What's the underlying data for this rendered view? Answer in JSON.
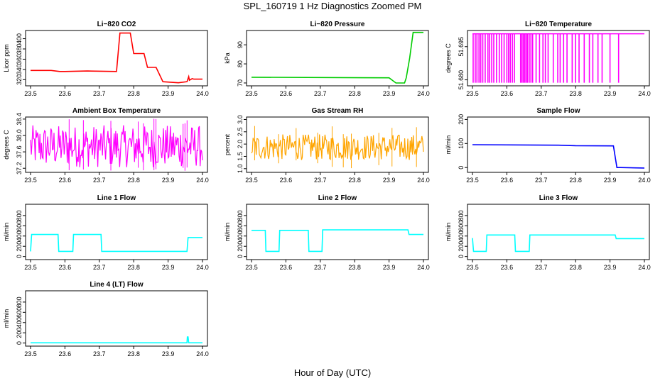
{
  "title": "SPL_160719  1 Hz Diagnostics Zoomed PM",
  "xlabel": "Hour of Day (UTC)",
  "chart_data": [
    {
      "type": "line",
      "title": "Li−820 CO2",
      "ylabel": "Licor ppm",
      "color": "#ff0000",
      "xlim": [
        23.5,
        24.0
      ],
      "xticks": [
        23.5,
        23.6,
        23.7,
        23.8,
        23.9,
        24.0
      ],
      "xtick_labels": [
        "23.5",
        "23.6",
        "23.7",
        "23.8",
        "23.9",
        "24.0"
      ],
      "ylim": [
        308,
        416
      ],
      "yticks": [
        320,
        340,
        360,
        380,
        400
      ],
      "ytick_labels": [
        "320",
        "340",
        "360",
        "380",
        "400"
      ],
      "series": [
        {
          "x": [
            23.5,
            23.56,
            23.585,
            23.6,
            23.665,
            23.75,
            23.76,
            23.79,
            23.8,
            23.83,
            23.84,
            23.865,
            23.885,
            23.93,
            23.955,
            23.96,
            23.962,
            23.97,
            23.975,
            24.0
          ],
          "y": [
            338,
            338,
            336,
            336,
            337,
            336,
            411,
            411,
            371,
            371,
            344,
            344,
            316,
            314,
            316,
            326,
            319,
            322,
            321,
            321
          ]
        }
      ]
    },
    {
      "type": "line",
      "title": "Li−820 Pressure",
      "ylabel": "kPa",
      "color": "#00cc00",
      "xlim": [
        23.5,
        24.0
      ],
      "xticks": [
        23.5,
        23.6,
        23.7,
        23.8,
        23.9,
        24.0
      ],
      "xtick_labels": [
        "23.5",
        "23.6",
        "23.7",
        "23.8",
        "23.9",
        "24.0"
      ],
      "ylim": [
        68.5,
        97.5
      ],
      "yticks": [
        70,
        80,
        90
      ],
      "ytick_labels": [
        "70",
        "80",
        "90"
      ],
      "series": [
        {
          "x": [
            23.5,
            23.9,
            23.92,
            23.945,
            23.95,
            23.96,
            23.97,
            24.0
          ],
          "y": [
            73,
            72.7,
            70,
            70,
            72.7,
            83,
            96.5,
            96.5
          ]
        }
      ]
    },
    {
      "type": "line",
      "title": "Li−820 Temperature",
      "ylabel": "degrees C",
      "color": "#ff00ff",
      "xlim": [
        23.5,
        24.0
      ],
      "xticks": [
        23.5,
        23.6,
        23.7,
        23.8,
        23.9,
        24.0
      ],
      "xtick_labels": [
        "23.5",
        "23.6",
        "23.7",
        "23.8",
        "23.9",
        "24.0"
      ],
      "ylim": [
        51.6773,
        51.7023
      ],
      "yticks": [
        51.68,
        51.695
      ],
      "ytick_labels": [
        "51.680",
        "51.695"
      ],
      "base_value": 51.7008,
      "dip_value": 51.6787,
      "series": [
        {
          "dip_x": [
            23.502,
            23.508,
            23.513,
            23.519,
            23.524,
            23.53,
            23.537,
            23.545,
            23.55,
            23.556,
            23.562,
            23.57,
            23.578,
            23.585,
            23.592,
            23.6,
            23.605,
            23.61,
            23.616,
            23.622,
            23.64,
            23.644,
            23.648,
            23.652,
            23.656,
            23.66,
            23.665,
            23.67,
            23.675,
            23.685,
            23.695,
            23.705,
            23.712,
            23.72,
            23.735,
            23.748,
            23.755,
            23.765,
            23.775,
            23.79,
            23.8,
            23.81,
            23.825,
            23.84,
            23.85,
            23.865,
            23.877,
            23.9,
            23.925
          ]
        }
      ]
    },
    {
      "type": "line",
      "title": "Ambient Box Temperature",
      "ylabel": "degrees C",
      "color": "#ff00ff",
      "xlim": [
        23.5,
        24.0
      ],
      "xticks": [
        23.5,
        23.6,
        23.7,
        23.8,
        23.9,
        24.0
      ],
      "xtick_labels": [
        "23.5",
        "23.6",
        "23.7",
        "23.8",
        "23.9",
        "24.0"
      ],
      "ylim": [
        37.1,
        38.45
      ],
      "yticks": [
        37.2,
        37.6,
        38.0,
        38.4
      ],
      "ytick_labels": [
        "37.2",
        "37.6",
        "38.0",
        "38.4"
      ],
      "series": [
        {
          "center": 37.78,
          "band_low": 37.22,
          "band_high": 38.25,
          "x_min": 23.5,
          "x_max": 24.0
        }
      ]
    },
    {
      "type": "line",
      "title": "Gas Stream RH",
      "ylabel": "percent",
      "color": "#ffa500",
      "xlim": [
        23.5,
        24.0
      ],
      "xticks": [
        23.5,
        23.6,
        23.7,
        23.8,
        23.9,
        24.0
      ],
      "xtick_labels": [
        "23.5",
        "23.6",
        "23.7",
        "23.8",
        "23.9",
        "24.0"
      ],
      "ylim": [
        0.85,
        3.1
      ],
      "yticks": [
        1.0,
        1.5,
        2.0,
        2.5,
        3.0
      ],
      "ytick_labels": [
        "1.0",
        "1.5",
        "2.0",
        "2.5",
        "3.0"
      ],
      "series": [
        {
          "center": 1.85,
          "band_low": 1.35,
          "band_high": 2.4,
          "x_min": 23.5,
          "x_max": 24.0
        }
      ]
    },
    {
      "type": "line",
      "title": "Sample Flow",
      "ylabel": "ml/min",
      "color": "#0000ff",
      "xlim": [
        23.5,
        24.0
      ],
      "xticks": [
        23.5,
        23.6,
        23.7,
        23.8,
        23.9,
        24.0
      ],
      "xtick_labels": [
        "23.5",
        "23.6",
        "23.7",
        "23.8",
        "23.9",
        "24.0"
      ],
      "ylim": [
        -20,
        210
      ],
      "yticks": [
        0,
        100,
        200
      ],
      "ytick_labels": [
        "0",
        "100",
        "200"
      ],
      "series": [
        {
          "x": [
            23.5,
            23.75,
            23.8,
            23.91,
            23.92,
            23.93,
            24.0
          ],
          "y": [
            95,
            93,
            91,
            90,
            0,
            0,
            -2
          ]
        }
      ]
    },
    {
      "type": "line",
      "title": "Line 1 Flow",
      "ylabel": "ml/min",
      "color": "#00ffff",
      "xlim": [
        23.5,
        24.0
      ],
      "xticks": [
        23.5,
        23.6,
        23.7,
        23.8,
        23.9,
        24.0
      ],
      "xtick_labels": [
        "23.5",
        "23.6",
        "23.7",
        "23.8",
        "23.9",
        "24.0"
      ],
      "ylim": [
        -60,
        1020
      ],
      "yticks": [
        0,
        200,
        400,
        600,
        800
      ],
      "ytick_labels": [
        "0",
        "200",
        "400",
        "600",
        "800"
      ],
      "series": [
        {
          "x": [
            23.5,
            23.503,
            23.58,
            23.582,
            23.623,
            23.625,
            23.705,
            23.707,
            23.955,
            23.958,
            24.0
          ],
          "y": [
            100,
            430,
            430,
            100,
            100,
            430,
            430,
            100,
            100,
            370,
            370
          ]
        }
      ]
    },
    {
      "type": "line",
      "title": "Line 2 Flow",
      "ylabel": "ml/min",
      "color": "#00ffff",
      "xlim": [
        23.5,
        24.0
      ],
      "xticks": [
        23.5,
        23.6,
        23.7,
        23.8,
        23.9,
        24.0
      ],
      "xtick_labels": [
        "23.5",
        "23.6",
        "23.7",
        "23.8",
        "23.9",
        "24.0"
      ],
      "ylim": [
        -60,
        1020
      ],
      "yticks": [
        0,
        200,
        400,
        600,
        800
      ],
      "ytick_labels": [
        "0",
        "200",
        "400",
        "600",
        "800"
      ],
      "series": [
        {
          "x": [
            23.5,
            23.54,
            23.542,
            23.58,
            23.582,
            23.665,
            23.667,
            23.705,
            23.707,
            23.955,
            23.958,
            24.0
          ],
          "y": [
            510,
            510,
            100,
            100,
            510,
            510,
            100,
            100,
            520,
            520,
            430,
            430
          ]
        }
      ]
    },
    {
      "type": "line",
      "title": "Line 3 Flow",
      "ylabel": "ml/min",
      "color": "#00ffff",
      "xlim": [
        23.5,
        24.0
      ],
      "xticks": [
        23.5,
        23.6,
        23.7,
        23.8,
        23.9,
        24.0
      ],
      "xtick_labels": [
        "23.5",
        "23.6",
        "23.7",
        "23.8",
        "23.9",
        "24.0"
      ],
      "ylim": [
        -60,
        1020
      ],
      "yticks": [
        0,
        200,
        400,
        600,
        800
      ],
      "ytick_labels": [
        "0",
        "200",
        "400",
        "600",
        "800"
      ],
      "series": [
        {
          "x": [
            23.5,
            23.503,
            23.54,
            23.542,
            23.623,
            23.625,
            23.665,
            23.667,
            23.915,
            23.918,
            24.0
          ],
          "y": [
            360,
            100,
            100,
            420,
            420,
            100,
            100,
            420,
            420,
            350,
            350
          ]
        }
      ]
    },
    {
      "type": "line",
      "title": "Line 4 (LT) Flow",
      "ylabel": "ml/min",
      "color": "#00ffff",
      "xlim": [
        23.5,
        24.0
      ],
      "xticks": [
        23.5,
        23.6,
        23.7,
        23.8,
        23.9,
        24.0
      ],
      "xtick_labels": [
        "23.5",
        "23.6",
        "23.7",
        "23.8",
        "23.9",
        "24.0"
      ],
      "ylim": [
        -60,
        1020
      ],
      "yticks": [
        0,
        200,
        400,
        600,
        800
      ],
      "ytick_labels": [
        "0",
        "200",
        "400",
        "600",
        "800"
      ],
      "series": [
        {
          "x": [
            23.5,
            23.955,
            23.956,
            23.958,
            23.96,
            24.0
          ],
          "y": [
            5,
            5,
            120,
            120,
            5,
            5
          ]
        }
      ]
    }
  ]
}
